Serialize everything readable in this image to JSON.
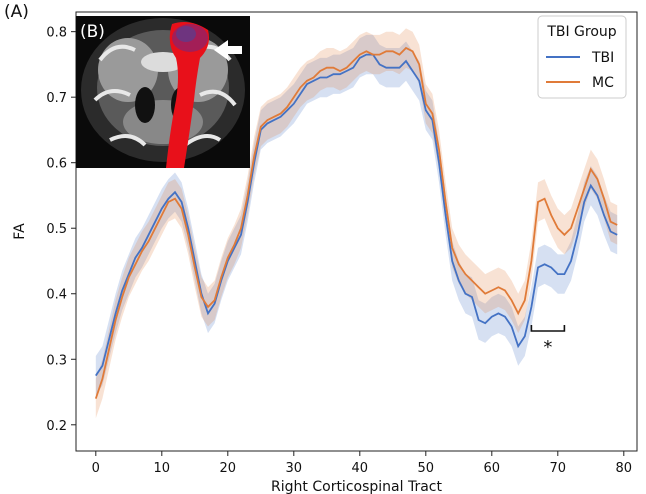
{
  "panel_label": "(A)",
  "inset": {
    "label": "(B)",
    "arrow_icon": "white-arrow-left-icon",
    "tract_color": "#e8101a"
  },
  "colors": {
    "TBI": "#4472c4",
    "MC": "#e07b39"
  },
  "chart_data": {
    "type": "line",
    "xlabel": "Right Corticospinal Tract",
    "ylabel": "FA",
    "xlim": [
      -3,
      82
    ],
    "ylim": [
      0.16,
      0.83
    ],
    "xticks": [
      0,
      10,
      20,
      30,
      40,
      50,
      60,
      70,
      80
    ],
    "yticks": [
      0.2,
      0.3,
      0.4,
      0.5,
      0.6,
      0.7,
      0.8
    ],
    "grid": false,
    "legend": {
      "title": "TBI Group",
      "placement": "top-right"
    },
    "x": [
      0,
      1,
      2,
      3,
      4,
      5,
      6,
      7,
      8,
      9,
      10,
      11,
      12,
      13,
      14,
      15,
      16,
      17,
      18,
      19,
      20,
      21,
      22,
      23,
      24,
      25,
      26,
      27,
      28,
      29,
      30,
      31,
      32,
      33,
      34,
      35,
      36,
      37,
      38,
      39,
      40,
      41,
      42,
      43,
      44,
      45,
      46,
      47,
      48,
      49,
      50,
      51,
      52,
      53,
      54,
      55,
      56,
      57,
      58,
      59,
      60,
      61,
      62,
      63,
      64,
      65,
      66,
      67,
      68,
      69,
      70,
      71,
      72,
      73,
      74,
      75,
      76,
      77,
      78,
      79
    ],
    "series": [
      {
        "name": "TBI",
        "values": [
          0.275,
          0.29,
          0.33,
          0.37,
          0.405,
          0.43,
          0.455,
          0.47,
          0.49,
          0.51,
          0.53,
          0.545,
          0.555,
          0.54,
          0.5,
          0.45,
          0.4,
          0.37,
          0.385,
          0.42,
          0.45,
          0.47,
          0.49,
          0.54,
          0.6,
          0.65,
          0.66,
          0.665,
          0.67,
          0.68,
          0.69,
          0.705,
          0.72,
          0.725,
          0.73,
          0.73,
          0.735,
          0.735,
          0.74,
          0.745,
          0.76,
          0.765,
          0.765,
          0.75,
          0.745,
          0.745,
          0.745,
          0.755,
          0.74,
          0.725,
          0.68,
          0.665,
          0.6,
          0.52,
          0.45,
          0.42,
          0.4,
          0.395,
          0.36,
          0.355,
          0.365,
          0.37,
          0.365,
          0.35,
          0.32,
          0.335,
          0.38,
          0.44,
          0.445,
          0.44,
          0.43,
          0.43,
          0.45,
          0.49,
          0.54,
          0.565,
          0.55,
          0.52,
          0.495,
          0.49
        ],
        "band": 0.03
      },
      {
        "name": "MC",
        "values": [
          0.24,
          0.27,
          0.315,
          0.36,
          0.395,
          0.425,
          0.445,
          0.465,
          0.48,
          0.5,
          0.52,
          0.54,
          0.545,
          0.53,
          0.49,
          0.44,
          0.395,
          0.38,
          0.39,
          0.425,
          0.455,
          0.475,
          0.5,
          0.55,
          0.61,
          0.655,
          0.665,
          0.67,
          0.675,
          0.685,
          0.7,
          0.715,
          0.725,
          0.73,
          0.74,
          0.745,
          0.745,
          0.74,
          0.745,
          0.755,
          0.765,
          0.77,
          0.765,
          0.765,
          0.77,
          0.77,
          0.765,
          0.775,
          0.77,
          0.75,
          0.69,
          0.675,
          0.62,
          0.54,
          0.47,
          0.445,
          0.43,
          0.42,
          0.41,
          0.4,
          0.405,
          0.41,
          0.405,
          0.39,
          0.37,
          0.39,
          0.45,
          0.54,
          0.545,
          0.52,
          0.5,
          0.49,
          0.5,
          0.53,
          0.56,
          0.59,
          0.575,
          0.545,
          0.51,
          0.505
        ],
        "band": 0.03
      }
    ],
    "annotation": {
      "text": "*",
      "x_start": 66,
      "x_end": 71
    }
  }
}
